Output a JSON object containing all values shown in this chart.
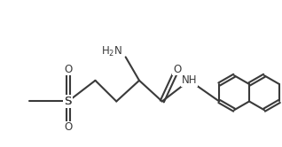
{
  "bg_color": "#ffffff",
  "line_color": "#3a3a3a",
  "line_width": 1.5,
  "font_size": 8.5,
  "figsize": [
    3.18,
    1.66
  ],
  "dpi": 100,
  "xlim": [
    0,
    10
  ],
  "ylim": [
    0,
    5.2
  ]
}
